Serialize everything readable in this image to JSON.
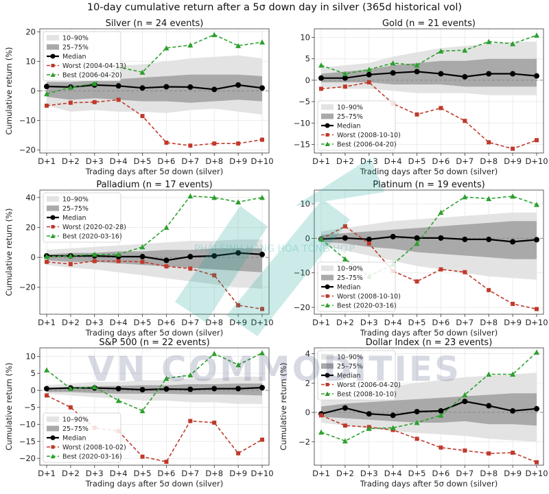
{
  "suptitle": "10-day cumulative return after a 5σ down day in silver (365d historical vol)",
  "watermark": {
    "text": "VN COMMODITIES",
    "subtext": "PHÁI SINH HÀNG HÓA TỔNG HỢP"
  },
  "colors": {
    "median": "#000000",
    "worst": "#c0392b",
    "best": "#2ca02c",
    "band_outer": "#e3e3e3",
    "band_inner": "#a9a9a9",
    "zero": "#888888",
    "grid": "#ebebeb"
  },
  "chart_data": [
    {
      "type": "line",
      "title": "Silver  (n = 24 events)",
      "xlabel": "Trading days after 5σ down (silver)",
      "ylabel": "Cumulative return (%)",
      "categories": [
        "D+1",
        "D+2",
        "D+3",
        "D+4",
        "D+5",
        "D+6",
        "D+7",
        "D+8",
        "D+9",
        "D+10"
      ],
      "ylim": [
        -21,
        21
      ],
      "yticks": [
        -20,
        -10,
        0,
        10,
        20
      ],
      "legend_position": "upper left",
      "legend": [
        "10–90%",
        "25–75%",
        "Median",
        "Worst (2004-04-13)",
        "Best (2006-04-20)"
      ],
      "band_10_90": {
        "lower": [
          -5,
          -7,
          -6.5,
          -7,
          -7,
          -7.5,
          -6.5,
          -6,
          -7,
          -8
        ],
        "upper": [
          6,
          6,
          8,
          8.5,
          9,
          10,
          11,
          11.5,
          12,
          11
        ]
      },
      "band_25_75": {
        "lower": [
          -2,
          -3,
          -2.5,
          -3,
          -3.5,
          -3.5,
          -4,
          -3.5,
          -3,
          -3.5
        ],
        "upper": [
          3,
          3,
          3.5,
          4,
          4.5,
          5,
          5.5,
          5.5,
          5.5,
          5
        ]
      },
      "series": [
        {
          "name": "Median",
          "values": [
            1.5,
            1.3,
            2.0,
            1.7,
            1.0,
            1.4,
            1.3,
            0.5,
            2.0,
            1.0
          ]
        },
        {
          "name": "Worst (2004-04-13)",
          "values": [
            -5,
            -4,
            -3.8,
            -3,
            -8.5,
            -17.5,
            -18.5,
            -17.8,
            -17.8,
            -16.5
          ]
        },
        {
          "name": "Best (2006-04-20)",
          "values": [
            -1,
            1.2,
            2.5,
            8,
            6.3,
            14.5,
            15.5,
            19,
            15.3,
            16.5
          ]
        }
      ]
    },
    {
      "type": "line",
      "title": "Gold  (n = 21 events)",
      "xlabel": "Trading days after 5σ down (silver)",
      "ylabel": "",
      "categories": [
        "D+1",
        "D+2",
        "D+3",
        "D+4",
        "D+5",
        "D+6",
        "D+7",
        "D+8",
        "D+9",
        "D+10"
      ],
      "ylim": [
        -17,
        12
      ],
      "yticks": [
        -15,
        -10,
        -5,
        0,
        5,
        10
      ],
      "legend_position": "lower left",
      "legend": [
        "10–90%",
        "25–75%",
        "Median",
        "Worst (2008-10-10)",
        "Best (2006-04-20)"
      ],
      "band_10_90": {
        "lower": [
          -1.5,
          -2,
          -2,
          -2.5,
          -3,
          -3,
          -3,
          -3.5,
          -3.5,
          -3.5
        ],
        "upper": [
          3,
          3.5,
          4,
          5.5,
          6.5,
          7.5,
          8,
          8.5,
          9,
          9
        ]
      },
      "band_25_75": {
        "lower": [
          -0.5,
          -0.5,
          -0.5,
          -1,
          -1,
          -1,
          -1.5,
          -1.5,
          -1.5,
          -1.5
        ],
        "upper": [
          1.5,
          2,
          2.5,
          3.5,
          4,
          4.5,
          4.5,
          5,
          5,
          5
        ]
      },
      "series": [
        {
          "name": "Median",
          "values": [
            0.5,
            0.5,
            1.3,
            1.7,
            2.0,
            1.5,
            0.8,
            1.5,
            1.5,
            1.0
          ]
        },
        {
          "name": "Worst (2008-10-10)",
          "values": [
            -2,
            -1.5,
            -0.5,
            -5.5,
            -8,
            -6.5,
            -9.5,
            -14.5,
            -16,
            -14
          ]
        },
        {
          "name": "Best (2006-04-20)",
          "values": [
            3.5,
            1.5,
            2.5,
            4,
            3.5,
            6.8,
            7,
            9,
            8.5,
            10.5
          ]
        }
      ]
    },
    {
      "type": "line",
      "title": "Palladium  (n = 17 events)",
      "xlabel": "Trading days after 5σ down (silver)",
      "ylabel": "Cumulative return (%)",
      "categories": [
        "D+1",
        "D+2",
        "D+3",
        "D+4",
        "D+5",
        "D+6",
        "D+7",
        "D+8",
        "D+9",
        "D+10"
      ],
      "ylim": [
        -38,
        45
      ],
      "yticks": [
        -20,
        0,
        20,
        40
      ],
      "legend_position": "upper left",
      "legend": [
        "10–90%",
        "25–75%",
        "Median",
        "Worst (2020-02-28)",
        "Best (2020-03-16)"
      ],
      "band_10_90": {
        "lower": [
          -5,
          -7,
          -8,
          -10,
          -12,
          -14,
          -16,
          -18,
          -20,
          -21
        ],
        "upper": [
          5,
          6,
          7,
          8,
          9,
          10,
          11,
          11,
          12,
          12
        ]
      },
      "band_25_75": {
        "lower": [
          -2,
          -3,
          -3,
          -4,
          -5,
          -6,
          -7,
          -8,
          -9,
          -10
        ],
        "upper": [
          2,
          3,
          3,
          4,
          4,
          5,
          5,
          6,
          6,
          6
        ]
      },
      "series": [
        {
          "name": "Median",
          "values": [
            1,
            1,
            1,
            0.5,
            0.5,
            -2,
            0.5,
            1,
            3,
            2
          ]
        },
        {
          "name": "Worst (2020-02-28)",
          "values": [
            -3,
            -4.5,
            -2.5,
            -2.5,
            -3,
            -6,
            -7.5,
            -12,
            -32,
            -34.5
          ]
        },
        {
          "name": "Best (2020-03-16)",
          "values": [
            0.5,
            1,
            2,
            2,
            7,
            20,
            41,
            40,
            37,
            40
          ]
        }
      ]
    },
    {
      "type": "line",
      "title": "Platinum  (n = 19 events)",
      "xlabel": "Trading days after 5σ down (silver)",
      "ylabel": "",
      "categories": [
        "D+1",
        "D+2",
        "D+3",
        "D+4",
        "D+5",
        "D+6",
        "D+7",
        "D+8",
        "D+9",
        "D+10"
      ],
      "ylim": [
        -22,
        14
      ],
      "yticks": [
        -20,
        -10,
        0,
        10
      ],
      "legend_position": "lower left",
      "legend": [
        "10–90%",
        "25–75%",
        "Median",
        "Worst (2008-10-10)",
        "Best (2020-03-16)"
      ],
      "band_10_90": {
        "lower": [
          -2,
          -3.5,
          -5,
          -6.5,
          -8,
          -9,
          -10,
          -11,
          -11.5,
          -12
        ],
        "upper": [
          2,
          3,
          4,
          5,
          5.5,
          6,
          6.5,
          7,
          7.5,
          7.5
        ]
      },
      "band_25_75": {
        "lower": [
          -1,
          -1.5,
          -2.5,
          -3,
          -4,
          -4.5,
          -5,
          -5.5,
          -6,
          -6
        ],
        "upper": [
          1,
          1.5,
          2,
          2.5,
          3,
          3.5,
          4,
          4.5,
          5,
          5
        ]
      },
      "series": [
        {
          "name": "Median",
          "values": [
            -0.2,
            0.1,
            -0.3,
            0.5,
            0.1,
            0.1,
            -0.3,
            -0.3,
            -1,
            -0.4
          ]
        },
        {
          "name": "Worst (2008-10-10)",
          "values": [
            -0.2,
            3.5,
            -1.5,
            -9.5,
            -12.5,
            -9,
            -9.8,
            -15,
            -19,
            -20.5
          ]
        },
        {
          "name": "Best (2020-03-16)",
          "values": [
            -0.2,
            -6,
            -11,
            -7.5,
            -1.5,
            7.5,
            12,
            11.5,
            12.2,
            9.8
          ]
        }
      ]
    },
    {
      "type": "line",
      "title": "S&P 500  (n = 22 events)",
      "xlabel": "Trading days after 5σ down (silver)",
      "ylabel": "Cumulative return (%)",
      "categories": [
        "D+1",
        "D+2",
        "D+3",
        "D+4",
        "D+5",
        "D+6",
        "D+7",
        "D+8",
        "D+9",
        "D+10"
      ],
      "ylim": [
        -22,
        12.5
      ],
      "yticks": [
        -20,
        -15,
        -10,
        -5,
        0,
        5,
        10
      ],
      "legend_position": "lower left",
      "legend": [
        "10–90%",
        "25–75%",
        "Median",
        "Worst (2008-10-02)",
        "Best (2020-03-16)"
      ],
      "band_10_90": {
        "lower": [
          -1,
          -1.5,
          -2,
          -2.5,
          -3,
          -3,
          -3.5,
          -3.5,
          -4,
          -4
        ],
        "upper": [
          1.5,
          2,
          2.5,
          2.5,
          3,
          3,
          3.5,
          3.5,
          4,
          4
        ]
      },
      "band_25_75": {
        "lower": [
          -0.5,
          -0.5,
          -0.8,
          -1,
          -1,
          -1,
          -1.2,
          -1.2,
          -1.3,
          -1.5
        ],
        "upper": [
          0.8,
          1,
          1.2,
          1.3,
          1.5,
          1.5,
          1.8,
          1.8,
          2,
          2
        ]
      },
      "series": [
        {
          "name": "Median",
          "values": [
            0.5,
            0.7,
            0.7,
            0.5,
            0.2,
            0.4,
            0.3,
            0.5,
            0.5,
            0.8
          ]
        },
        {
          "name": "Worst (2008-10-02)",
          "values": [
            -1.5,
            -5,
            -11,
            -12,
            -19.5,
            -21,
            -9,
            -9.5,
            -18.5,
            -14.5
          ]
        },
        {
          "name": "Best (2020-03-16)",
          "values": [
            6,
            0.5,
            1,
            -3,
            -6,
            3.5,
            4.5,
            10.8,
            7.5,
            11
          ]
        }
      ]
    },
    {
      "type": "line",
      "title": "Dollar Index  (n = 23 events)",
      "xlabel": "Trading days after 5σ down (silver)",
      "ylabel": "Cumulative return (%)",
      "categories": [
        "D+1",
        "D+2",
        "D+3",
        "D+4",
        "D+5",
        "D+6",
        "D+7",
        "D+8",
        "D+9",
        "D+10"
      ],
      "ylim": [
        -3.6,
        4.4
      ],
      "yticks": [
        -2,
        0,
        2,
        4
      ],
      "legend_position": "upper left",
      "legend": [
        "10–90%",
        "25–75%",
        "Median",
        "Worst (2006-04-20)",
        "Best (2008-10-10)"
      ],
      "band_10_90": {
        "lower": [
          -0.7,
          -0.9,
          -1.1,
          -1.3,
          -1.4,
          -1.5,
          -1.6,
          -1.8,
          -1.9,
          -2.0
        ],
        "upper": [
          0.8,
          1.2,
          1.5,
          1.8,
          2.0,
          2.2,
          2.4,
          2.5,
          2.6,
          2.7
        ]
      },
      "band_25_75": {
        "lower": [
          -0.3,
          -0.4,
          -0.5,
          -0.6,
          -0.7,
          -0.7,
          -0.6,
          -0.8,
          -0.8,
          -0.9
        ],
        "upper": [
          0.4,
          0.6,
          0.7,
          0.8,
          0.9,
          1.0,
          1.1,
          1.2,
          1.3,
          1.3
        ]
      },
      "series": [
        {
          "name": "Median",
          "values": [
            -0.1,
            0.3,
            -0.1,
            -0.2,
            0.05,
            0.1,
            0.75,
            0.45,
            0.1,
            0.25
          ]
        },
        {
          "name": "Worst (2006-04-20)",
          "values": [
            -0.2,
            -0.9,
            -1.0,
            -1.2,
            -1.8,
            -2.4,
            -2.6,
            -2.8,
            -2.75,
            -3.4
          ]
        },
        {
          "name": "Best (2008-10-10)",
          "values": [
            -1.35,
            -1.95,
            -1.1,
            -1.05,
            -0.7,
            -0.2,
            1.2,
            2.6,
            2.6,
            4.1
          ]
        }
      ]
    }
  ]
}
